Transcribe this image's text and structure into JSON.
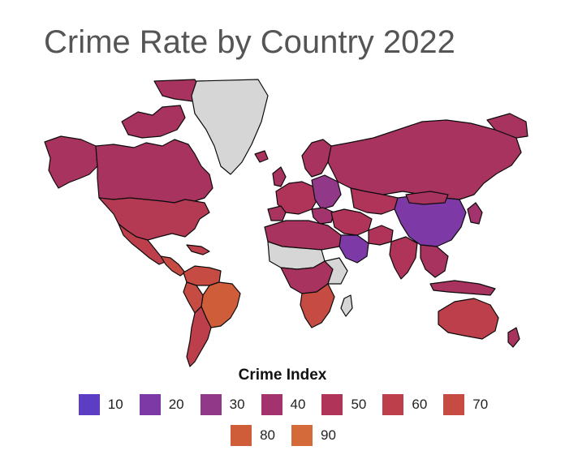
{
  "title": "Crime Rate by Country 2022",
  "legend": {
    "title": "Crime Index",
    "items": [
      {
        "label": "10",
        "color": "#5c3ec4"
      },
      {
        "label": "20",
        "color": "#7d3aa6"
      },
      {
        "label": "30",
        "color": "#913889"
      },
      {
        "label": "40",
        "color": "#a2336c"
      },
      {
        "label": "50",
        "color": "#b0345a"
      },
      {
        "label": "60",
        "color": "#bd3f4c"
      },
      {
        "label": "70",
        "color": "#c64c43"
      },
      {
        "label": "80",
        "color": "#cf5d3a"
      },
      {
        "label": "90",
        "color": "#d46a3a"
      }
    ]
  },
  "colors": {
    "no_data": "#d6d6d6",
    "background": "#ffffff"
  }
}
